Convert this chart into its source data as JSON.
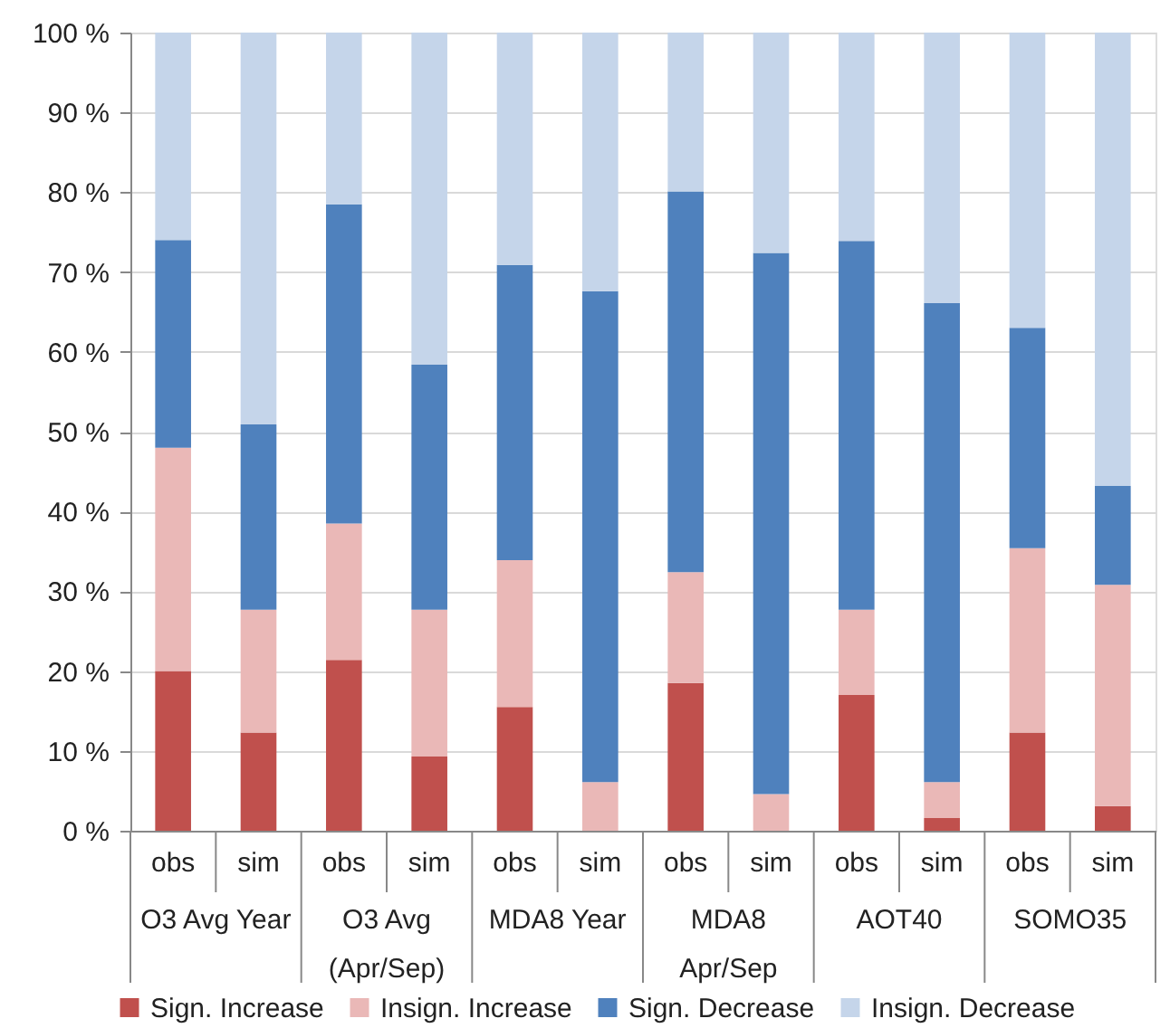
{
  "chart_data": {
    "type": "bar",
    "stacked": true,
    "categories": [
      "obs",
      "sim",
      "obs",
      "sim",
      "obs",
      "sim",
      "obs",
      "sim",
      "obs",
      "sim",
      "obs",
      "sim"
    ],
    "series": [
      {
        "name": "Sign. Increase",
        "color": "#c0504d",
        "values": [
          20,
          12.3,
          21.4,
          9.3,
          15.5,
          0,
          18.5,
          0,
          17,
          1.6,
          12.3,
          3.1
        ]
      },
      {
        "name": "Insign. Increase",
        "color": "#eab8b7",
        "values": [
          28,
          15.4,
          17.1,
          18.4,
          18.4,
          6.1,
          13.9,
          4.6,
          10.7,
          4.5,
          23.1,
          27.7
        ]
      },
      {
        "name": "Sign. Decrease",
        "color": "#4f81bd",
        "values": [
          26,
          23.2,
          40,
          30.7,
          37,
          61.5,
          47.7,
          67.8,
          46.2,
          60,
          27.6,
          12.4
        ]
      },
      {
        "name": "Insign. Decrease",
        "color": "#c5d5ea",
        "values": [
          26,
          49.1,
          21.5,
          41.6,
          29.1,
          32.4,
          19.9,
          27.6,
          26.1,
          33.9,
          37,
          56.8
        ]
      }
    ],
    "annotations": [
      "O3 Avg Year",
      "O3 Avg (Apr/Sep)",
      "MDA8 Year",
      "MDA8 Apr/Sep",
      "AOT40",
      "SOMO35"
    ],
    "ylim": [
      0,
      100
    ],
    "yticks": [
      {
        "value": 0,
        "label": "0 %"
      },
      {
        "value": 10,
        "label": "10 %"
      },
      {
        "value": 20,
        "label": "20 %"
      },
      {
        "value": 30,
        "label": "30 %"
      },
      {
        "value": 40,
        "label": "40 %"
      },
      {
        "value": 50,
        "label": "50 %"
      },
      {
        "value": 60,
        "label": "60 %"
      },
      {
        "value": 70,
        "label": "70 %"
      },
      {
        "value": 80,
        "label": "80 %"
      },
      {
        "value": 90,
        "label": "90 %"
      },
      {
        "value": 100,
        "label": "100 %"
      }
    ],
    "grid": "y",
    "legend": "bottom"
  }
}
